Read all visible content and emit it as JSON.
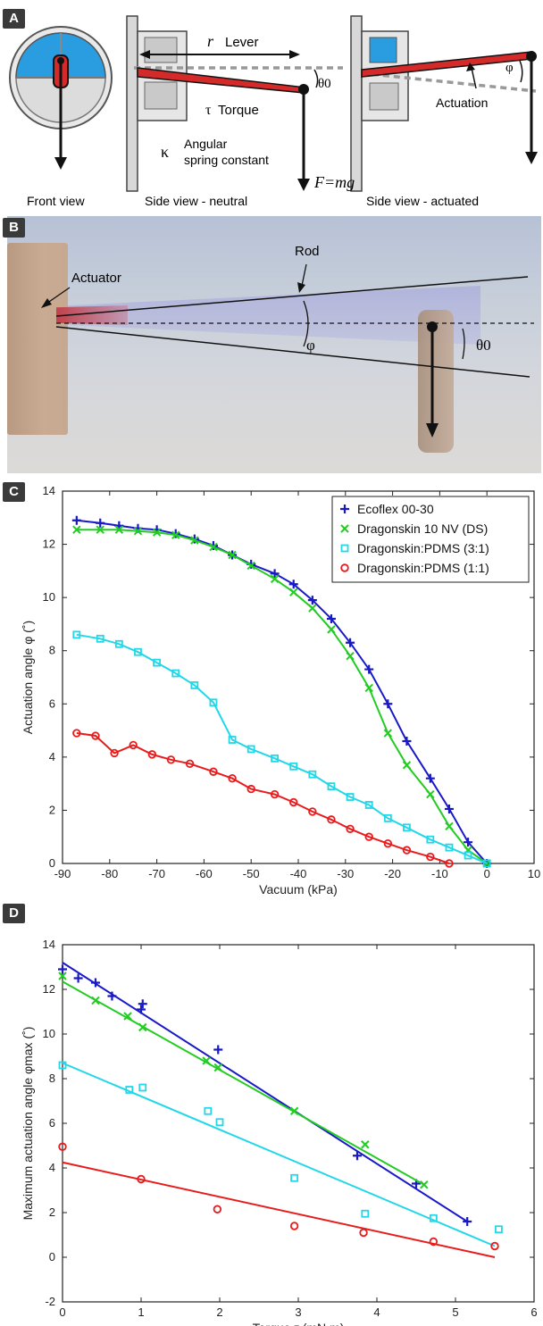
{
  "panel_a": {
    "letter": "A",
    "lever_symbol": "r",
    "lever_label": "Lever",
    "theta0_label": "θ0",
    "torque_symbol": "τ",
    "torque_label": "Torque",
    "kappa_symbol": "κ",
    "spring_label_line1": "Angular",
    "spring_label_line2": "spring constant",
    "force_label": "F=mg",
    "phi_label": "φ",
    "actuation_label": "Actuation",
    "caption_front": "Front view",
    "caption_neutral": "Side view - neutral",
    "caption_actuated": "Side view - actuated"
  },
  "panel_b": {
    "letter": "B",
    "actuator_label": "Actuator",
    "rod_label": "Rod",
    "phi_label": "φ",
    "theta0_label": "θ0"
  },
  "panel_c": {
    "letter": "C"
  },
  "panel_d": {
    "letter": "D"
  },
  "colors": {
    "ecoflex": "#1919c8",
    "dragonskin": "#22cc22",
    "ds_pdms_31": "#22d7e8",
    "ds_pdms_11": "#e81c1c",
    "rod_red": "#d42a2a"
  },
  "chart_data": [
    {
      "type": "line",
      "xlabel": "Vacuum (kPa)",
      "ylabel": "Actuation angle φ (˚)",
      "xlim": [
        -90,
        10
      ],
      "ylim": [
        0,
        14
      ],
      "xticks": [
        -90,
        -80,
        -70,
        -60,
        -50,
        -40,
        -30,
        -20,
        -10,
        0,
        10
      ],
      "yticks": [
        0,
        2,
        4,
        6,
        8,
        10,
        12,
        14
      ],
      "grid": false,
      "legend_position": "top-right",
      "series": [
        {
          "name": "Ecoflex 00-30",
          "marker": "+",
          "color": "#1919c8",
          "x": [
            -87,
            -82,
            -78,
            -74,
            -70,
            -66,
            -62,
            -58,
            -54,
            -50,
            -45,
            -41,
            -37,
            -33,
            -29,
            -25,
            -21,
            -17,
            -12,
            -8,
            -4,
            0
          ],
          "y": [
            12.9,
            12.8,
            12.7,
            12.6,
            12.55,
            12.4,
            12.2,
            11.95,
            11.6,
            11.25,
            10.9,
            10.5,
            9.9,
            9.2,
            8.3,
            7.3,
            6.0,
            4.6,
            3.2,
            2.05,
            0.8,
            0.0
          ]
        },
        {
          "name": "Dragonskin 10 NV (DS)",
          "marker": "x",
          "color": "#22cc22",
          "x": [
            -87,
            -82,
            -78,
            -74,
            -70,
            -66,
            -62,
            -58,
            -54,
            -50,
            -45,
            -41,
            -37,
            -33,
            -29,
            -25,
            -21,
            -17,
            -12,
            -8,
            -4,
            0
          ],
          "y": [
            12.55,
            12.55,
            12.55,
            12.5,
            12.45,
            12.35,
            12.15,
            11.9,
            11.6,
            11.2,
            10.7,
            10.2,
            9.6,
            8.8,
            7.8,
            6.6,
            4.9,
            3.7,
            2.6,
            1.4,
            0.5,
            0.0
          ]
        },
        {
          "name": "Dragonskin:PDMS (3:1)",
          "marker": "square",
          "color": "#22d7e8",
          "x": [
            -87,
            -82,
            -78,
            -74,
            -70,
            -66,
            -62,
            -58,
            -54,
            -50,
            -45,
            -41,
            -37,
            -33,
            -29,
            -25,
            -21,
            -17,
            -12,
            -8,
            -4,
            0
          ],
          "y": [
            8.6,
            8.45,
            8.25,
            7.95,
            7.55,
            7.15,
            6.7,
            6.05,
            4.65,
            4.3,
            3.95,
            3.65,
            3.35,
            2.9,
            2.5,
            2.2,
            1.7,
            1.35,
            0.9,
            0.6,
            0.3,
            0.0
          ]
        },
        {
          "name": "Dragonskin:PDMS (1:1)",
          "marker": "o",
          "color": "#e81c1c",
          "x": [
            -87,
            -83,
            -79,
            -75,
            -71,
            -67,
            -63,
            -58,
            -54,
            -50,
            -45,
            -41,
            -37,
            -33,
            -29,
            -25,
            -21,
            -17,
            -12,
            -8
          ],
          "y": [
            4.9,
            4.8,
            4.15,
            4.45,
            4.1,
            3.9,
            3.75,
            3.45,
            3.2,
            2.8,
            2.6,
            2.3,
            1.95,
            1.65,
            1.3,
            1.0,
            0.75,
            0.5,
            0.25,
            0.0
          ]
        }
      ]
    },
    {
      "type": "scatter",
      "xlabel": "Torque τ (mN m)",
      "ylabel": "Maximum actuation angle φmax (˚)",
      "xlim": [
        0,
        6
      ],
      "ylim": [
        -2,
        14
      ],
      "xticks": [
        0,
        1,
        2,
        3,
        4,
        5,
        6
      ],
      "yticks": [
        -2,
        0,
        2,
        4,
        6,
        8,
        10,
        12,
        14
      ],
      "grid": false,
      "series": [
        {
          "marker": "+",
          "color": "#1919c8",
          "x": [
            0,
            0.2,
            0.42,
            0.63,
            1.0,
            1.02,
            1.98,
            3.75,
            4.5,
            5.15
          ],
          "y": [
            12.9,
            12.5,
            12.3,
            11.7,
            11.1,
            11.35,
            9.3,
            4.55,
            3.3,
            1.6
          ],
          "fit": [
            [
              0,
              13.2
            ],
            [
              5.15,
              1.6
            ]
          ]
        },
        {
          "marker": "x",
          "color": "#22cc22",
          "x": [
            0,
            0.42,
            0.83,
            1.02,
            1.83,
            1.98,
            2.95,
            3.85,
            4.6
          ],
          "y": [
            12.6,
            11.5,
            10.8,
            10.3,
            8.8,
            8.5,
            6.55,
            5.05,
            3.25
          ],
          "fit": [
            [
              0,
              12.35
            ],
            [
              4.6,
              3.25
            ]
          ]
        },
        {
          "marker": "square",
          "color": "#22d7e8",
          "x": [
            0,
            0.85,
            1.02,
            1.85,
            2.0,
            2.95,
            3.85,
            4.72,
            5.55
          ],
          "y": [
            8.6,
            7.5,
            7.6,
            6.55,
            6.05,
            3.55,
            1.95,
            1.75,
            1.25
          ],
          "fit": [
            [
              0,
              8.7
            ],
            [
              5.5,
              0.5
            ]
          ]
        },
        {
          "marker": "o",
          "color": "#e81c1c",
          "x": [
            0,
            1.0,
            1.97,
            2.95,
            3.83,
            4.72,
            5.5
          ],
          "y": [
            4.95,
            3.5,
            2.15,
            1.4,
            1.1,
            0.7,
            0.5
          ],
          "fit": [
            [
              0,
              4.25
            ],
            [
              5.5,
              0.0
            ]
          ]
        }
      ]
    }
  ]
}
